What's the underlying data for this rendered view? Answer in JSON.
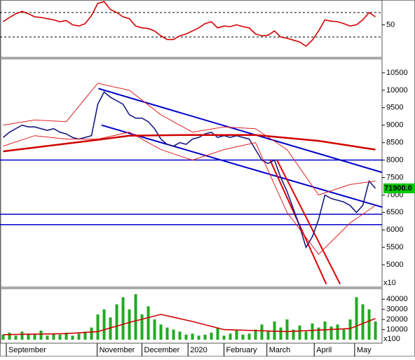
{
  "chart_data": [
    {
      "type": "line",
      "xlim": [
        -0.5,
        60.05
      ],
      "ylim": [
        -1,
        90.5
      ],
      "yticks": [
        50
      ],
      "levels": [
        30,
        70
      ],
      "series": [
        {
          "color": "#d40000",
          "values": [
            55,
            62,
            68,
            72,
            68,
            63,
            62,
            60,
            58,
            55,
            57,
            50,
            48,
            52,
            65,
            85,
            88,
            75,
            70,
            63,
            60,
            48,
            45,
            44,
            40,
            32,
            26,
            26,
            32,
            35,
            40,
            45,
            52,
            55,
            45,
            48,
            47,
            50,
            47,
            45,
            35,
            32,
            33,
            40,
            30,
            28,
            25,
            22,
            15,
            25,
            40,
            58,
            56,
            55,
            52,
            48,
            50,
            58,
            70,
            63
          ]
        }
      ]
    },
    {
      "type": "line",
      "xlim": [
        -0.5,
        60.05
      ],
      "ylim": [
        4400,
        10900
      ],
      "yticks": [
        5000,
        5500,
        6000,
        6500,
        7000,
        7500,
        8000,
        8500,
        9000,
        9500,
        10000,
        10500
      ],
      "axis_unit": "x10",
      "series": [
        {
          "color": "#1a1a80",
          "values": [
            8650,
            8800,
            8900,
            9000,
            8950,
            8950,
            8900,
            8850,
            8900,
            8800,
            8750,
            8650,
            8600,
            8650,
            8700,
            9600,
            9950,
            9800,
            9700,
            9600,
            9300,
            9200,
            9200,
            9100,
            8900,
            8600,
            8450,
            8400,
            8500,
            8450,
            8600,
            8650,
            8750,
            8800,
            8650,
            8700,
            8650,
            8700,
            8650,
            8600,
            8300,
            8000,
            7900,
            8000,
            7500,
            7100,
            6600,
            6100,
            5500,
            5800,
            6300,
            7000,
            6900,
            6850,
            6800,
            6700,
            6500,
            6700,
            7400,
            7190
          ]
        },
        {
          "color": "#e02020",
          "width": 1,
          "x": [
            0,
            5,
            10,
            15,
            20,
            25,
            30,
            35,
            40,
            45,
            50,
            55,
            59
          ],
          "values": [
            9000,
            9150,
            9100,
            10200,
            10000,
            9300,
            8800,
            8950,
            8900,
            8300,
            7000,
            7300,
            7400
          ]
        },
        {
          "color": "#e02020",
          "width": 1,
          "x": [
            0,
            5,
            10,
            15,
            20,
            25,
            30,
            35,
            40,
            45,
            50,
            55,
            59
          ],
          "values": [
            8400,
            8700,
            8600,
            8600,
            8800,
            8300,
            8000,
            8300,
            8500,
            6500,
            5300,
            6200,
            6700
          ]
        },
        {
          "color": "#d00000",
          "width": 2.5,
          "x": [
            0,
            15,
            20,
            30,
            40,
            50,
            59
          ],
          "values": [
            8250,
            8580,
            8700,
            8720,
            8720,
            8550,
            8300
          ]
        }
      ],
      "hlines": [
        8000,
        6450,
        6150
      ],
      "hline_color": "#0000c8",
      "trendlines": [
        {
          "color": "#0000c8",
          "x": [
            15.1,
            60
          ],
          "values": [
            10050,
            7650
          ]
        },
        {
          "color": "#0000c8",
          "x": [
            15.6,
            60.1
          ],
          "values": [
            9000,
            6650
          ]
        },
        {
          "color": "#e00000",
          "x": [
            42.3,
            51.2
          ],
          "values": [
            8000,
            4450
          ]
        },
        {
          "color": "#e00000",
          "x": [
            43.4,
            53.4
          ],
          "values": [
            8000,
            4450
          ]
        }
      ],
      "last_price": {
        "value": 7190,
        "label": "71900.0"
      }
    },
    {
      "type": "bar",
      "xlim": [
        -0.5,
        60.05
      ],
      "ylim": [
        0,
        45000
      ],
      "yticks": [
        10000,
        20000,
        30000,
        40000
      ],
      "axis_unit": "x100",
      "xticks": [
        {
          "value": 0.5,
          "label": "September"
        },
        {
          "value": 14.9,
          "label": "November"
        },
        {
          "value": 22,
          "label": "December"
        },
        {
          "value": 29.3,
          "label": "2020"
        },
        {
          "value": 35,
          "label": "February"
        },
        {
          "value": 41.8,
          "label": "March"
        },
        {
          "value": 49.3,
          "label": "April"
        },
        {
          "value": 55.7,
          "label": "May"
        }
      ],
      "series": [
        {
          "color": "#22aa22",
          "values": [
            5000,
            7000,
            4000,
            8000,
            6000,
            5000,
            9000,
            4000,
            6000,
            5000,
            7000,
            4000,
            6000,
            8000,
            12000,
            25000,
            30000,
            22000,
            35000,
            42000,
            30000,
            45000,
            25000,
            33000,
            20000,
            15000,
            12000,
            10000,
            8000,
            5000,
            6000,
            4000,
            5000,
            7000,
            12000,
            4000,
            6000,
            9000,
            5000,
            6000,
            10000,
            15000,
            9000,
            18000,
            12000,
            20000,
            10000,
            14000,
            8000,
            16000,
            12000,
            18000,
            13000,
            15000,
            10000,
            20000,
            42000,
            35000,
            30000,
            18000
          ]
        },
        {
          "color": "#d00000",
          "x": [
            0,
            5,
            10,
            15,
            20,
            25,
            30,
            35,
            40,
            45,
            50,
            55,
            59
          ],
          "values": [
            5000,
            5500,
            6000,
            8000,
            17000,
            25000,
            18000,
            10000,
            9000,
            8000,
            9500,
            11000,
            21000
          ]
        }
      ]
    }
  ]
}
